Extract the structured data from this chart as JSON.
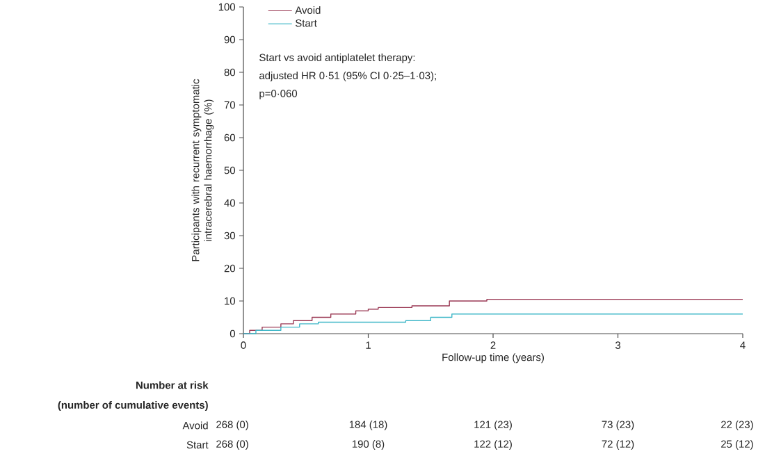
{
  "chart_data": {
    "type": "step",
    "ylabel": "Participants with recurrent symptomatic intracerebral haemorrhage (%)",
    "xlabel": "Follow-up time (years)",
    "xlim": [
      0,
      4
    ],
    "xticks": [
      0,
      1,
      2,
      3,
      4
    ],
    "ylim": [
      0,
      100
    ],
    "yticks": [
      0,
      10,
      20,
      30,
      40,
      50,
      60,
      70,
      80,
      90,
      100
    ],
    "legend": "top left",
    "series": [
      {
        "name": "Avoid",
        "color": "#9b3a55",
        "x": [
          0,
          0.05,
          0.15,
          0.3,
          0.4,
          0.55,
          0.7,
          0.9,
          1.0,
          1.08,
          1.35,
          1.65,
          1.95,
          4
        ],
        "values": [
          0,
          1,
          2,
          3,
          4,
          5,
          6,
          7,
          7.5,
          8,
          8.5,
          10,
          10.5,
          10.5
        ]
      },
      {
        "name": "Start",
        "color": "#3fb7c8",
        "x": [
          0,
          0.1,
          0.3,
          0.45,
          0.6,
          1.3,
          1.5,
          1.67,
          4
        ],
        "values": [
          0,
          1,
          2,
          3,
          3.5,
          4,
          5,
          6,
          6
        ]
      }
    ],
    "annotations": [
      "Start vs avoid antiplatelet therapy:",
      "adjusted HR 0·51 (95% CI 0·25–1·03);",
      "p=0·060",
      "Number at risk",
      "(number of cumulative events)",
      "268 (0)",
      "184 (18)",
      "121 (23)",
      "73 (23)",
      "22 (23)",
      "268 (0)",
      "190 (8)",
      "122 (12)",
      "72 (12)",
      "25 (12)"
    ]
  }
}
